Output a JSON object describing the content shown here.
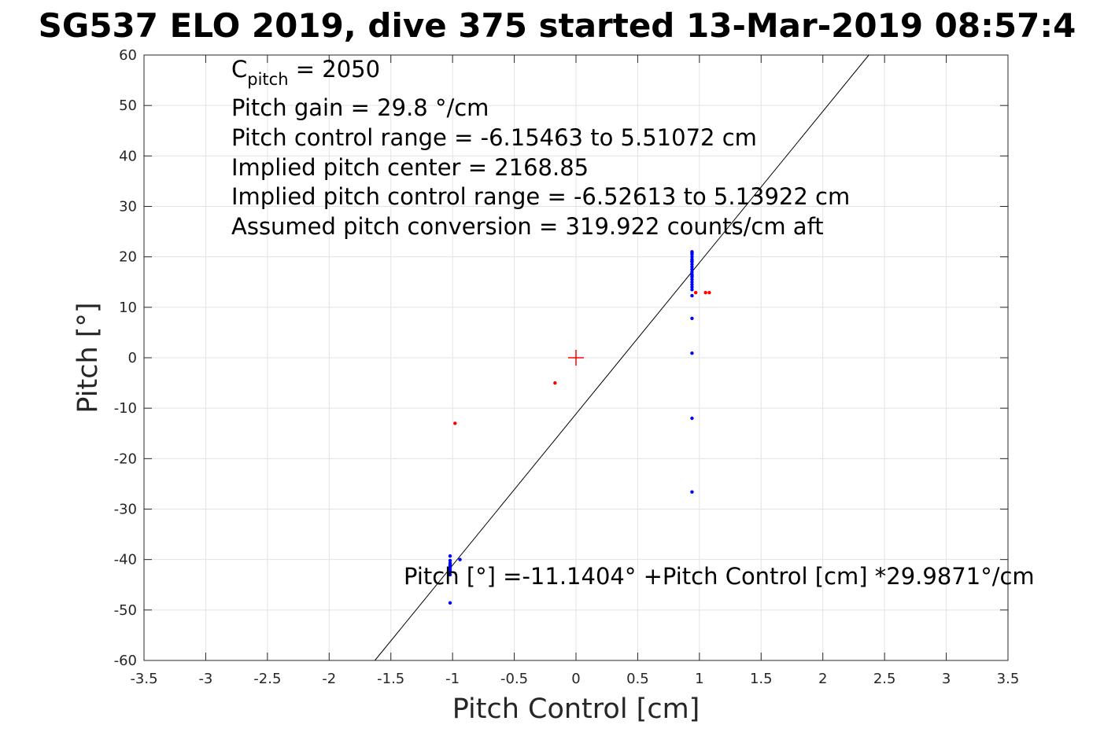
{
  "title": "SG537 ELO 2019, dive 375 started 13-Mar-2019 08:57:4",
  "colors": {
    "blue": "#0000ff",
    "red": "#ff0000",
    "fit_line": "#000000"
  },
  "chart_data": {
    "type": "scatter",
    "xlabel": "Pitch Control [cm]",
    "ylabel": "Pitch [°]",
    "xlim": [
      -3.5,
      3.5
    ],
    "ylim": [
      -60,
      60
    ],
    "xticks": [
      -3.5,
      -3,
      -2.5,
      -2,
      -1.5,
      -1,
      -0.5,
      0,
      0.5,
      1,
      1.5,
      2,
      2.5,
      3,
      3.5
    ],
    "xtick_labels": [
      "-3.5",
      "-3",
      "-2.5",
      "-2",
      "-1.5",
      "-1",
      "-0.5",
      "0",
      "0.5",
      "1",
      "1.5",
      "2",
      "2.5",
      "3",
      "3.5"
    ],
    "yticks": [
      -60,
      -50,
      -40,
      -30,
      -20,
      -10,
      0,
      10,
      20,
      30,
      40,
      50,
      60
    ],
    "ytick_labels": [
      "-60",
      "-50",
      "-40",
      "-30",
      "-20",
      "-10",
      "0",
      "10",
      "20",
      "30",
      "40",
      "50",
      "60"
    ],
    "grid": true,
    "series": [
      {
        "marker": "dot",
        "color": "blue",
        "x": [
          0.94,
          0.94,
          0.94,
          0.94,
          0.94,
          0.94,
          0.94,
          0.94,
          0.94,
          0.94,
          0.94,
          0.94,
          0.94,
          0.94,
          0.94,
          0.94,
          0.94,
          0.94,
          0.94,
          0.94,
          0.94,
          0.94,
          0.94,
          0.94,
          -1.02,
          -1.02,
          -1.02,
          -1.02,
          -1.02,
          -1.02,
          -1.02,
          -1.02,
          -1.02,
          -1.02,
          -0.94
        ],
        "y": [
          21,
          20.5,
          20,
          19.5,
          19,
          18.5,
          18,
          17.5,
          17,
          16.5,
          16,
          15.5,
          15,
          14.5,
          14,
          13.5,
          12.3,
          7.8,
          0.9,
          -12,
          -26.6,
          20.8,
          19.2,
          16.2,
          -39.3,
          -40.2,
          -40.7,
          -41.2,
          -41.6,
          -42,
          -42.4,
          -43,
          -48.6,
          -41,
          -40
        ]
      },
      {
        "marker": "dot",
        "color": "red",
        "x": [
          0.97,
          1.05,
          1.08,
          -0.98,
          -0.17
        ],
        "y": [
          12.9,
          12.9,
          12.9,
          -13,
          -5
        ]
      },
      {
        "marker": "plus",
        "color": "red",
        "x": [
          0
        ],
        "y": [
          0
        ]
      }
    ],
    "fit_line": {
      "intercept": -11.1404,
      "slope": 29.9871
    },
    "annotations": {
      "cpitch_prefix": "C",
      "cpitch_sub": "pitch",
      "cpitch_suffix": " = 2050",
      "lines": [
        "Pitch gain = 29.8 °/cm",
        "Pitch control range = -6.15463 to 5.51072 cm",
        "Implied pitch center = 2168.85",
        "Implied pitch control range = -6.52613 to 5.13922 cm",
        "Assumed pitch conversion = 319.922 counts/cm aft"
      ],
      "fit_label": "Pitch [°] =-11.1404° +Pitch Control [cm] *29.9871°/cm"
    }
  }
}
